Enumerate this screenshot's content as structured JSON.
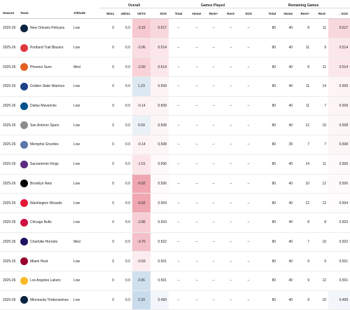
{
  "groups": {
    "overall": "Overall",
    "games_played": "Games Played",
    "remaining_games": "Remaining Games"
  },
  "columns": {
    "season": "Season",
    "team": "Team",
    "altitude": "Altitude",
    "wins": "Wins",
    "xwins": "xWins",
    "vets": "VETS",
    "sos": "SOS",
    "gp_total": "Total",
    "gp_home": "Home",
    "gp_rest_plus": "Rest+",
    "gp_rest_minus": "Rest-",
    "gp_sos": "SOS",
    "rg_total": "Total",
    "rg_home": "Home",
    "rg_rest_plus": "Rest+",
    "rg_rest_minus": "Rest-",
    "rg_sos": "SOS",
    "sort_arrow": "↓"
  },
  "rows": [
    {
      "season": "2025-26",
      "team": "New Orleans Pelicans",
      "logo_color": "#0c2340",
      "altitude": "Low",
      "wins": "0",
      "xwins": "0.0",
      "vets": "-3.15",
      "vets_bg": "#f6c9d0",
      "sos": "0.517",
      "sos_bg": "#f8d8dd",
      "gp_total": "–",
      "gp_home": "–",
      "gp_rest_plus": "–",
      "gp_rest_minus": "–",
      "gp_sos": "–",
      "rg_total": "80",
      "rg_home": "40",
      "rg_rest_plus": "8",
      "rg_rest_minus": "11",
      "rg_sos": "0.517",
      "rg_sos_bg": "#f8d8dd"
    },
    {
      "season": "2025-26",
      "team": "Portland Trail Blazers",
      "logo_color": "#e03a3e",
      "altitude": "Low",
      "wins": "0",
      "xwins": "0.0",
      "vets": "-2.06",
      "vets_bg": "#f9dde2",
      "sos": "0.514",
      "sos_bg": "#fbe7ea",
      "gp_total": "–",
      "gp_home": "–",
      "gp_rest_plus": "–",
      "gp_rest_minus": "–",
      "gp_sos": "–",
      "rg_total": "80",
      "rg_home": "40",
      "rg_rest_plus": "11",
      "rg_rest_minus": "9",
      "rg_sos": "0.514",
      "rg_sos_bg": "#fbe7ea"
    },
    {
      "season": "2025-26",
      "team": "Phoenix Suns",
      "logo_color": "#e56020",
      "altitude": "Med",
      "wins": "0",
      "xwins": "0.0",
      "vets": "-2.60",
      "vets_bg": "#f8d2d8",
      "sos": "0.514",
      "sos_bg": "#fbe7ea",
      "gp_total": "–",
      "gp_home": "–",
      "gp_rest_plus": "–",
      "gp_rest_minus": "–",
      "gp_sos": "–",
      "rg_total": "80",
      "rg_home": "40",
      "rg_rest_plus": "8",
      "rg_rest_minus": "11",
      "rg_sos": "0.514",
      "rg_sos_bg": "#fbe7ea"
    },
    {
      "season": "2025-26",
      "team": "Golden State Warriors",
      "logo_color": "#1d428a",
      "altitude": "Low",
      "wins": "0",
      "xwins": "0.0",
      "vets": "1.23",
      "vets_bg": "#dde9f2",
      "sos": "0.509",
      "sos_bg": "#fdf4f5",
      "gp_total": "–",
      "gp_home": "–",
      "gp_rest_plus": "–",
      "gp_rest_minus": "–",
      "gp_sos": "–",
      "rg_total": "80",
      "rg_home": "40",
      "rg_rest_plus": "11",
      "rg_rest_minus": "14",
      "rg_sos": "0.509",
      "rg_sos_bg": "#fdf4f5"
    },
    {
      "season": "2025-26",
      "team": "Dallas Mavericks",
      "logo_color": "#00538c",
      "altitude": "Low",
      "wins": "0",
      "xwins": "0.0",
      "vets": "-0.14",
      "vets_bg": "#fdf3f5",
      "sos": "0.509",
      "sos_bg": "#fdf4f5",
      "gp_total": "–",
      "gp_home": "–",
      "gp_rest_plus": "–",
      "gp_rest_minus": "–",
      "gp_sos": "–",
      "rg_total": "80",
      "rg_home": "40",
      "rg_rest_plus": "11",
      "rg_rest_minus": "7",
      "rg_sos": "0.509",
      "rg_sos_bg": "#fdf4f5"
    },
    {
      "season": "2025-26",
      "team": "San Antonio Spurs",
      "logo_color": "#8a8d8f",
      "altitude": "Low",
      "wins": "0",
      "xwins": "0.0",
      "vets": "0.69",
      "vets_bg": "#eaf1f7",
      "sos": "0.508",
      "sos_bg": "#fdf6f7",
      "gp_total": "–",
      "gp_home": "–",
      "gp_rest_plus": "–",
      "gp_rest_minus": "–",
      "gp_sos": "–",
      "rg_total": "80",
      "rg_home": "40",
      "rg_rest_plus": "12",
      "rg_rest_minus": "10",
      "rg_sos": "0.508",
      "rg_sos_bg": "#fdf6f7"
    },
    {
      "season": "2025-26",
      "team": "Memphis Grizzlies",
      "logo_color": "#5d76a9",
      "altitude": "Low",
      "wins": "0",
      "xwins": "0.0",
      "vets": "-0.14",
      "vets_bg": "#fdf3f5",
      "sos": "0.508",
      "sos_bg": "#fdf6f7",
      "gp_total": "–",
      "gp_home": "–",
      "gp_rest_plus": "–",
      "gp_rest_minus": "–",
      "gp_sos": "–",
      "rg_total": "80",
      "rg_home": "39",
      "rg_rest_plus": "7",
      "rg_rest_minus": "7",
      "rg_sos": "0.508",
      "rg_sos_bg": "#fdf6f7"
    },
    {
      "season": "2025-26",
      "team": "Sacramento Kings",
      "logo_color": "#5a2d81",
      "altitude": "Low",
      "wins": "0",
      "xwins": "0.0",
      "vets": "-1.51",
      "vets_bg": "#fbe5e9",
      "sos": "0.506",
      "sos_bg": "#fef9fa",
      "gp_total": "–",
      "gp_home": "–",
      "gp_rest_plus": "–",
      "gp_rest_minus": "–",
      "gp_sos": "–",
      "rg_total": "80",
      "rg_home": "40",
      "rg_rest_plus": "14",
      "rg_rest_minus": "11",
      "rg_sos": "0.506",
      "rg_sos_bg": "#fef9fa"
    },
    {
      "season": "2025-26",
      "team": "Brooklyn Nets",
      "logo_color": "#000000",
      "altitude": "Low",
      "wins": "0",
      "xwins": "0.0",
      "vets": "-5.62",
      "vets_bg": "#f0a7b2",
      "sos": "0.506",
      "sos_bg": "#fef9fa",
      "gp_total": "–",
      "gp_home": "–",
      "gp_rest_plus": "–",
      "gp_rest_minus": "–",
      "gp_sos": "–",
      "rg_total": "80",
      "rg_home": "40",
      "rg_rest_plus": "10",
      "rg_rest_minus": "12",
      "rg_sos": "0.506",
      "rg_sos_bg": "#fef9fa"
    },
    {
      "season": "2025-26",
      "team": "Washington Wizards",
      "logo_color": "#e31837",
      "altitude": "Low",
      "wins": "0",
      "xwins": "0.0",
      "vets": "-5.62",
      "vets_bg": "#f0a7b2",
      "sos": "0.504",
      "sos_bg": "#fefcfc",
      "gp_total": "–",
      "gp_home": "–",
      "gp_rest_plus": "–",
      "gp_rest_minus": "–",
      "gp_sos": "–",
      "rg_total": "80",
      "rg_home": "40",
      "rg_rest_plus": "12",
      "rg_rest_minus": "12",
      "rg_sos": "0.504",
      "rg_sos_bg": "#fefcfc"
    },
    {
      "season": "2025-26",
      "team": "Chicago Bulls",
      "logo_color": "#ce1141",
      "altitude": "Low",
      "wins": "0",
      "xwins": "0.0",
      "vets": "-2.86",
      "vets_bg": "#f7ced5",
      "sos": "0.503",
      "sos_bg": "#ffffff",
      "gp_total": "–",
      "gp_home": "–",
      "gp_rest_plus": "–",
      "gp_rest_minus": "–",
      "gp_sos": "–",
      "rg_total": "80",
      "rg_home": "40",
      "rg_rest_plus": "8",
      "rg_rest_minus": "8",
      "rg_sos": "0.503",
      "rg_sos_bg": "#ffffff"
    },
    {
      "season": "2025-26",
      "team": "Charlotte Hornets",
      "logo_color": "#1d1160",
      "altitude": "Med",
      "wins": "0",
      "xwins": "0.0",
      "vets": "-3.70",
      "vets_bg": "#f4c0c9",
      "sos": "0.502",
      "sos_bg": "#ffffff",
      "gp_total": "–",
      "gp_home": "–",
      "gp_rest_plus": "–",
      "gp_rest_minus": "–",
      "gp_sos": "–",
      "rg_total": "80",
      "rg_home": "40",
      "rg_rest_plus": "7",
      "rg_rest_minus": "10",
      "rg_sos": "0.502",
      "rg_sos_bg": "#ffffff"
    },
    {
      "season": "2025-26",
      "team": "Miami Heat",
      "logo_color": "#98002e",
      "altitude": "Low",
      "wins": "0",
      "xwins": "0.0",
      "vets": "-0.69",
      "vets_bg": "#fcecef",
      "sos": "0.501",
      "sos_bg": "#ffffff",
      "gp_total": "–",
      "gp_home": "–",
      "gp_rest_plus": "–",
      "gp_rest_minus": "–",
      "gp_sos": "–",
      "rg_total": "80",
      "rg_home": "40",
      "rg_rest_plus": "9",
      "rg_rest_minus": "9",
      "rg_sos": "0.501",
      "rg_sos_bg": "#ffffff"
    },
    {
      "season": "2025-26",
      "team": "Los Angeles Lakers",
      "logo_color": "#fdb927",
      "altitude": "Low",
      "wins": "0",
      "xwins": "0.0",
      "vets": "2.06",
      "vets_bg": "#cfe0ee",
      "sos": "0.501",
      "sos_bg": "#ffffff",
      "gp_total": "–",
      "gp_home": "–",
      "gp_rest_plus": "–",
      "gp_rest_minus": "–",
      "gp_sos": "–",
      "rg_total": "80",
      "rg_home": "40",
      "rg_rest_plus": "9",
      "rg_rest_minus": "12",
      "rg_sos": "0.501",
      "rg_sos_bg": "#ffffff"
    },
    {
      "season": "2025-26",
      "team": "Minnesota Timberwolves",
      "logo_color": "#0c2340",
      "altitude": "Low",
      "wins": "0",
      "xwins": "0.0",
      "vets": "2.33",
      "vets_bg": "#c9dcec",
      "sos": "0.499",
      "sos_bg": "#f2f6fa",
      "gp_total": "–",
      "gp_home": "–",
      "gp_rest_plus": "–",
      "gp_rest_minus": "–",
      "gp_sos": "–",
      "rg_total": "80",
      "rg_home": "40",
      "rg_rest_plus": "9",
      "rg_rest_minus": "10",
      "rg_sos": "0.499",
      "rg_sos_bg": "#f2f6fa"
    }
  ]
}
